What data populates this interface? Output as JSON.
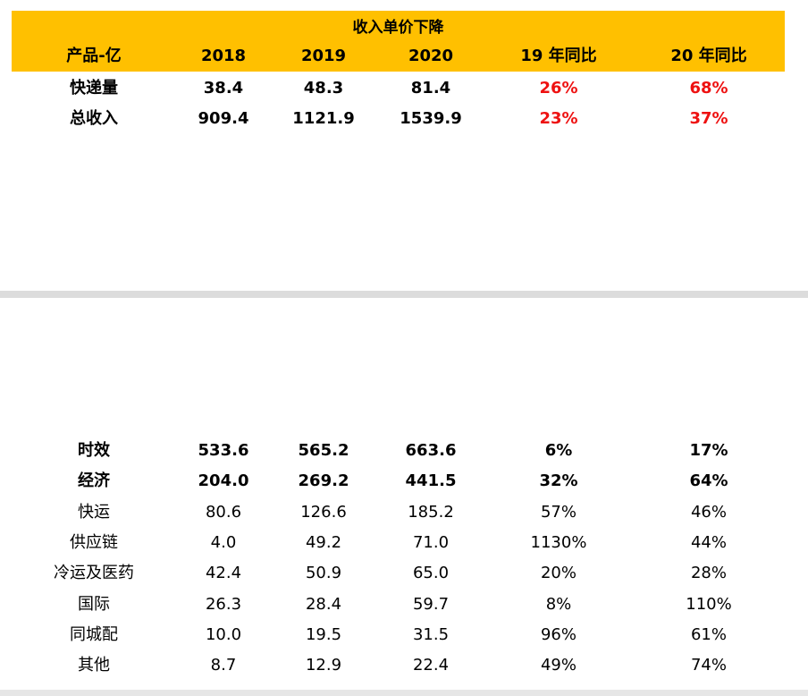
{
  "table1": {
    "title": "收入单价下降",
    "headers": [
      "产品-亿",
      "2018",
      "2019",
      "2020",
      "19 年同比",
      "20 年同比"
    ],
    "rows": [
      [
        "快递量",
        "38.4",
        "48.3",
        "81.4",
        "26%",
        "68%"
      ],
      [
        "总收入",
        "909.4",
        "1121.9",
        "1539.9",
        "23%",
        "37%"
      ]
    ]
  },
  "table2": {
    "rows": [
      [
        "时效",
        "533.6",
        "565.2",
        "663.6",
        "6%",
        "17%"
      ],
      [
        "经济",
        "204.0",
        "269.2",
        "441.5",
        "32%",
        "64%"
      ],
      [
        "快运",
        "80.6",
        "126.6",
        "185.2",
        "57%",
        "46%"
      ],
      [
        "供应链",
        "4.0",
        "49.2",
        "71.0",
        "1130%",
        "44%"
      ],
      [
        "冷运及医药",
        "42.4",
        "50.9",
        "65.0",
        "20%",
        "28%"
      ],
      [
        "国际",
        "26.3",
        "28.4",
        "59.7",
        "8%",
        "110%"
      ],
      [
        "同城配",
        "10.0",
        "19.5",
        "31.5",
        "96%",
        "61%"
      ],
      [
        "其他",
        "8.7",
        "12.9",
        "22.4",
        "49%",
        "74%"
      ]
    ]
  },
  "colors": {
    "header_bg": "#ffc000",
    "growth_highlight": "#ee1111"
  }
}
